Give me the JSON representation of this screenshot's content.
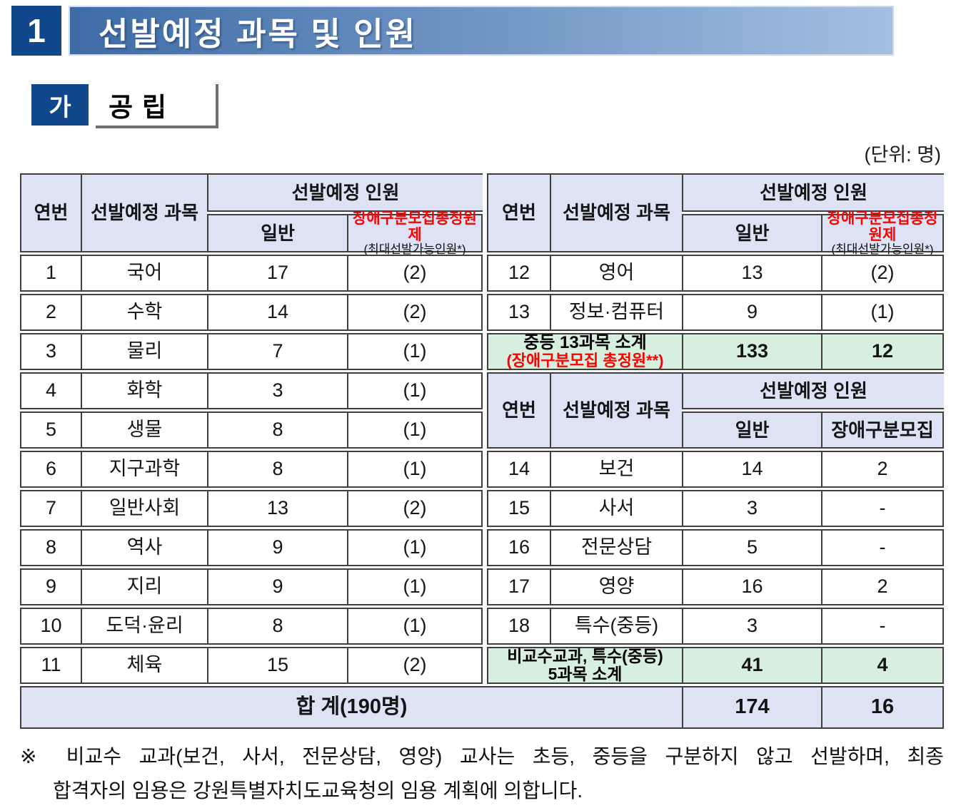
{
  "page": {
    "section_number": "1",
    "section_title": "선발예정 과목 및 인원",
    "subsection_marker": "가",
    "subsection_title": "공립",
    "unit_label": "(단위: 명)"
  },
  "table": {
    "header": {
      "no": "연번",
      "subject": "선발예정 과목",
      "personnel": "선발예정 인원",
      "general": "일반",
      "disability_red": "장애구분모집총정원제",
      "disability_sub": "(최대선발가능인원*)",
      "disability2": "장애구분모집"
    },
    "left_rows": [
      {
        "no": "1",
        "subject": "국어",
        "general": "17",
        "disability": "(2)"
      },
      {
        "no": "2",
        "subject": "수학",
        "general": "14",
        "disability": "(2)"
      },
      {
        "no": "3",
        "subject": "물리",
        "general": "7",
        "disability": "(1)"
      },
      {
        "no": "4",
        "subject": "화학",
        "general": "3",
        "disability": "(1)"
      },
      {
        "no": "5",
        "subject": "생물",
        "general": "8",
        "disability": "(1)"
      },
      {
        "no": "6",
        "subject": "지구과학",
        "general": "8",
        "disability": "(1)"
      },
      {
        "no": "7",
        "subject": "일반사회",
        "general": "13",
        "disability": "(2)"
      },
      {
        "no": "8",
        "subject": "역사",
        "general": "9",
        "disability": "(1)"
      },
      {
        "no": "9",
        "subject": "지리",
        "general": "9",
        "disability": "(1)"
      },
      {
        "no": "10",
        "subject": "도덕·윤리",
        "general": "8",
        "disability": "(1)"
      },
      {
        "no": "11",
        "subject": "체육",
        "general": "15",
        "disability": "(2)"
      }
    ],
    "right_rows_top": [
      {
        "no": "12",
        "subject": "영어",
        "general": "13",
        "disability": "(2)"
      },
      {
        "no": "13",
        "subject": "정보·컴퓨터",
        "general": "9",
        "disability": "(1)"
      }
    ],
    "subtotal_mid": {
      "label1": "중등 13과목 소계",
      "label2": "(장애구분모집 총정원**)",
      "general": "133",
      "disability": "12"
    },
    "right_rows_bottom": [
      {
        "no": "14",
        "subject": "보건",
        "general": "14",
        "disability": "2"
      },
      {
        "no": "15",
        "subject": "사서",
        "general": "3",
        "disability": "-"
      },
      {
        "no": "16",
        "subject": "전문상담",
        "general": "5",
        "disability": "-"
      },
      {
        "no": "17",
        "subject": "영양",
        "general": "16",
        "disability": "2"
      },
      {
        "no": "18",
        "subject": "특수(중등)",
        "general": "3",
        "disability": "-"
      }
    ],
    "subtotal_bottom": {
      "label1": "비교수교과, 특수(중등)",
      "label2": "5과목 소계",
      "general": "41",
      "disability": "4"
    },
    "total": {
      "label": "합 계(190명)",
      "general": "174",
      "disability": "16"
    }
  },
  "footnote": {
    "line1": "※ 비교수 교과(보건, 사서, 전문상담, 영양) 교사는 초등, 중등을 구분하지 않고 선발하며, 최종",
    "line2": "합격자의 임용은 강원특별자치도교육청의 임용 계획에 의합니다."
  },
  "colors": {
    "navy": "#11488c",
    "banner1": "#3e6ba6",
    "banner2": "#a3c0e2",
    "hdrbg": "#dde2f4",
    "grnbg": "#d7efdf",
    "red": "#ff0000"
  }
}
